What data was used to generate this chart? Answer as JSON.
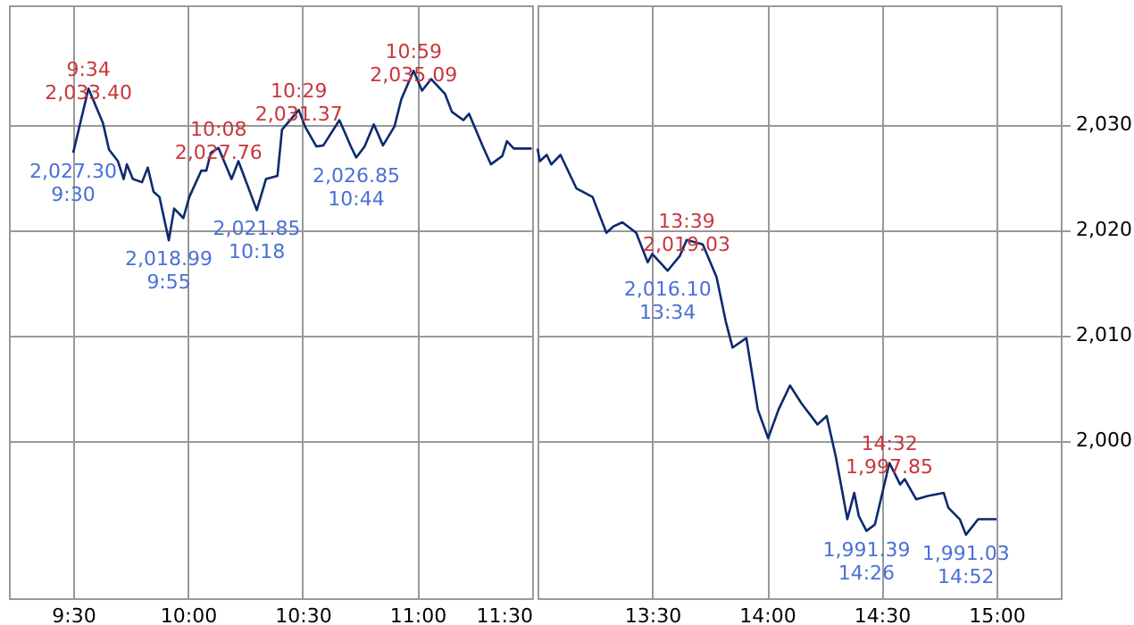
{
  "chart_data": [
    {
      "type": "line",
      "x": [
        9.5,
        9.5667,
        9.63,
        9.656,
        9.695,
        9.72,
        9.734,
        9.76,
        9.8,
        9.825,
        9.85,
        9.876,
        9.9167,
        9.94,
        9.98,
        10.006,
        10.058,
        10.08,
        10.1,
        10.1333,
        10.19,
        10.22,
        10.3,
        10.34,
        10.39,
        10.41,
        10.4833,
        10.51,
        10.56,
        10.59,
        10.66,
        10.71,
        10.7333,
        10.77,
        10.81,
        10.85,
        10.9,
        10.93,
        10.9833,
        11.02,
        11.06,
        11.12,
        11.15,
        11.2,
        11.225,
        11.285,
        11.32,
        11.37,
        11.39,
        11.42,
        11.498
      ],
      "series": [
        {
          "color": "#0b2a6f",
          "values": [
            2027.3,
            2033.4,
            2030.1,
            2027.6,
            2026.5,
            2024.8,
            2026.2,
            2024.8,
            2024.5,
            2025.9,
            2023.6,
            2023.1,
            2018.99,
            2022.0,
            2021.1,
            2023.1,
            2025.6,
            2025.6,
            2027.3,
            2027.76,
            2024.8,
            2026.5,
            2021.85,
            2024.8,
            2025.1,
            2029.5,
            2031.37,
            2029.8,
            2027.9,
            2028.0,
            2030.4,
            2027.9,
            2026.85,
            2027.9,
            2030.0,
            2028.0,
            2029.8,
            2032.4,
            2035.09,
            2033.2,
            2034.3,
            2032.9,
            2031.2,
            2030.4,
            2031.0,
            2027.9,
            2026.2,
            2027.0,
            2028.4,
            2027.7,
            2027.7
          ]
        }
      ],
      "xlim": [
        9.22,
        11.5
      ],
      "ylim": [
        1985,
        2041.3
      ],
      "xticks": [
        {
          "value": 9.5,
          "label": "9:30"
        },
        {
          "value": 10,
          "label": "10:00"
        },
        {
          "value": 10.5,
          "label": "10:30"
        },
        {
          "value": 11,
          "label": "11:00"
        },
        {
          "value": 11.5,
          "label": "11:30"
        }
      ],
      "yticks": [
        2000,
        2010,
        2020,
        2030
      ],
      "grid": true,
      "tick_labels": "x",
      "annotations": [
        {
          "text": "2,027.30\n9:30",
          "x": 9.5,
          "y": 2027.3
        },
        {
          "text": "9:34\n2,033.40",
          "x": 9.5667,
          "y": 2033.4
        },
        {
          "text": "2,018.99\n9:55",
          "x": 9.9167,
          "y": 2018.99
        },
        {
          "text": "10:08\n2,027.76",
          "x": 10.1333,
          "y": 2027.76
        },
        {
          "text": "2,021.85\n10:18",
          "x": 10.3,
          "y": 2021.85
        },
        {
          "text": "10:29\n2,031.37",
          "x": 10.4833,
          "y": 2031.37
        },
        {
          "text": "2,026.85\n10:44",
          "x": 10.7333,
          "y": 2026.85
        },
        {
          "text": "10:59\n2,035.09",
          "x": 10.9833,
          "y": 2035.09
        }
      ]
    },
    {
      "type": "line",
      "x": [
        13.0,
        13.01,
        13.04,
        13.06,
        13.1,
        13.17,
        13.24,
        13.3,
        13.33,
        13.37,
        13.43,
        13.48,
        13.5,
        13.5667,
        13.62,
        13.65,
        13.72,
        13.78,
        13.82,
        13.85,
        13.91,
        13.96,
        14.005,
        14.05,
        14.1,
        14.15,
        14.22,
        14.26,
        14.3,
        14.35,
        14.38,
        14.4,
        14.4333,
        14.47,
        14.5333,
        14.58,
        14.6,
        14.65,
        14.7,
        14.77,
        14.79,
        14.84,
        14.8667,
        14.92,
        15.0
      ],
      "series": [
        {
          "color": "#0b2a6f",
          "values": [
            2027.7,
            2026.5,
            2027.1,
            2026.2,
            2027.1,
            2023.9,
            2023.1,
            2019.7,
            2020.3,
            2020.7,
            2019.7,
            2016.9,
            2017.7,
            2016.1,
            2017.5,
            2019.03,
            2018.6,
            2015.5,
            2011.3,
            2008.8,
            2009.7,
            2002.9,
            2000.2,
            2002.9,
            2005.2,
            2003.5,
            2001.5,
            2002.3,
            1998.4,
            1992.5,
            1995.0,
            1992.8,
            1991.39,
            1992.0,
            1997.85,
            1995.8,
            1996.3,
            1994.4,
            1994.7,
            1995.0,
            1993.6,
            1992.5,
            1991.03,
            1992.5,
            1992.5
          ]
        }
      ],
      "xlim": [
        13.0,
        15.28
      ],
      "ylim": [
        1985,
        2041.3
      ],
      "xticks": [
        {
          "value": 13,
          "label": null
        },
        {
          "value": 13.5,
          "label": "13:30"
        },
        {
          "value": 14,
          "label": "14:00"
        },
        {
          "value": 14.5,
          "label": "14:30"
        },
        {
          "value": 15,
          "label": "15:00"
        }
      ],
      "yticks": [
        {
          "value": 2000,
          "label": "2,000"
        },
        {
          "value": 2010,
          "label": "2,010"
        },
        {
          "value": 2020,
          "label": "2,020"
        },
        {
          "value": 2030,
          "label": "2,030"
        }
      ],
      "grid": true,
      "annotations": [
        {
          "text": "2,016.10\n13:34",
          "x": 13.5667,
          "y": 2016.1
        },
        {
          "text": "13:39\n2,019.03",
          "x": 13.65,
          "y": 2019.03
        },
        {
          "text": "1,991.39\n14:26",
          "x": 14.4333,
          "y": 1991.39
        },
        {
          "text": "14:32\n1,997.85",
          "x": 14.5333,
          "y": 1997.85
        },
        {
          "text": "1,991.03\n14:52",
          "x": 14.8667,
          "y": 1991.03
        }
      ]
    }
  ]
}
